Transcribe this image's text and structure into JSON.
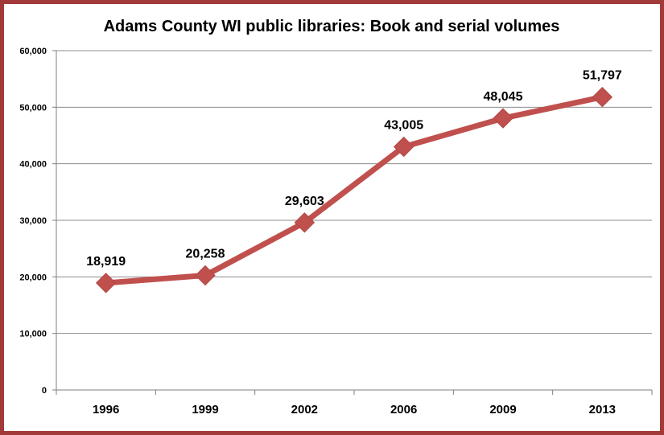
{
  "colors": {
    "frame": "#a33a3a",
    "series": "#c0504d",
    "grid": "#8c8c8c",
    "axis": "#7f7f7f"
  },
  "chart_data": {
    "type": "line",
    "title": "Adams County WI public libraries:  Book and serial volumes",
    "xlabel": "",
    "ylabel": "",
    "categories": [
      "1996",
      "1999",
      "2002",
      "2006",
      "2009",
      "2013"
    ],
    "series": [
      {
        "values": [
          18919,
          20258,
          29603,
          43005,
          48045,
          51797
        ],
        "labels": [
          "18,919",
          "20,258",
          "29,603",
          "43,005",
          "48,045",
          "51,797"
        ]
      }
    ],
    "ylim": [
      0,
      60000
    ],
    "yticks": [
      "0",
      "10,000",
      "20,000",
      "30,000",
      "40,000",
      "50,000",
      "60,000"
    ],
    "grid": true,
    "legend": "none",
    "marker": "diamond"
  }
}
